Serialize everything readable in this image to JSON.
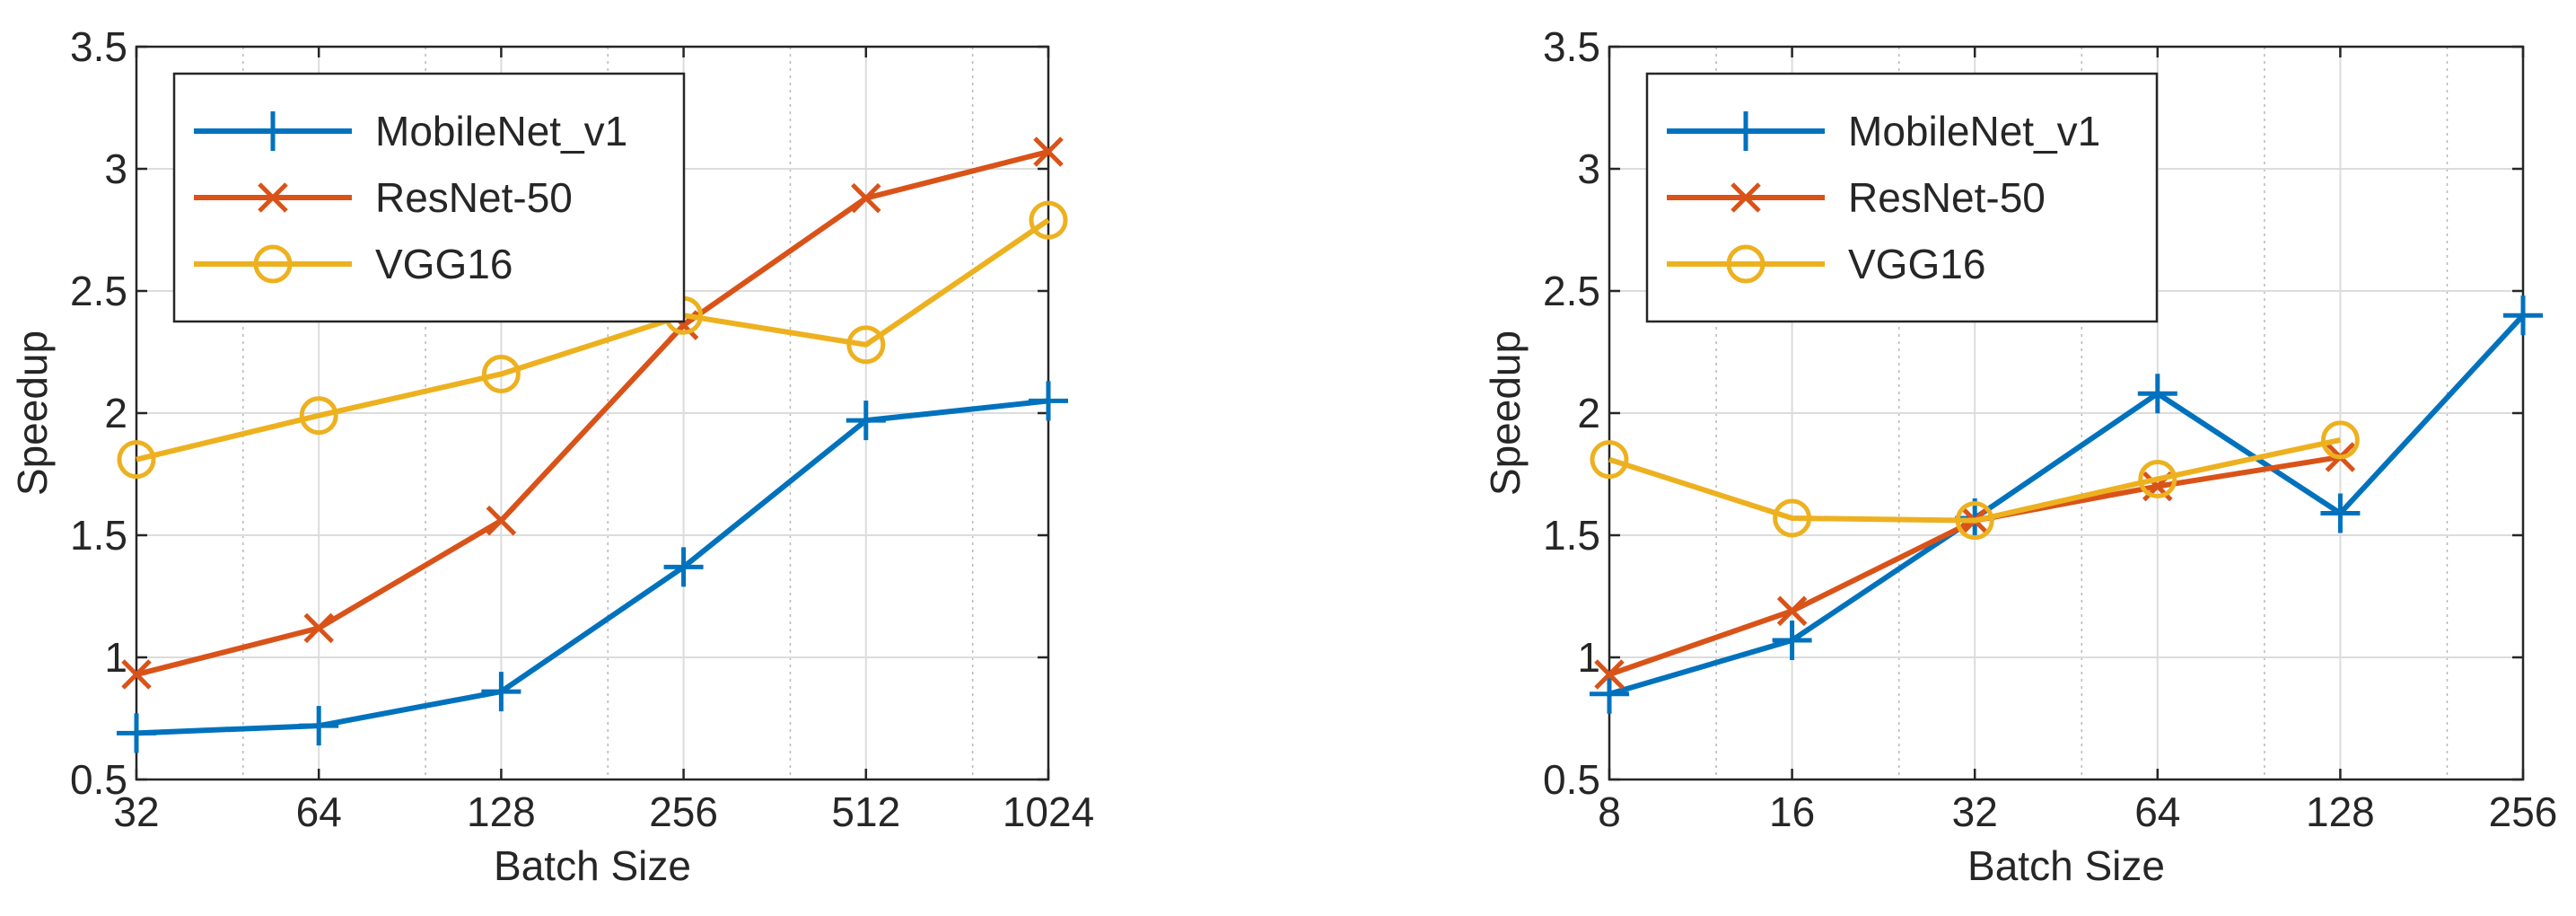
{
  "chart_data": [
    {
      "type": "line",
      "xscale": "log2",
      "xlabel": "Batch Size",
      "ylabel": "Speedup",
      "x": [
        32,
        64,
        128,
        256,
        512,
        1024
      ],
      "xticks": [
        "32",
        "64",
        "128",
        "256",
        "512",
        "1024"
      ],
      "xlim": [
        32,
        1024
      ],
      "yticks": [
        "0.5",
        "1",
        "1.5",
        "2",
        "2.5",
        "3",
        "3.5"
      ],
      "ylim": [
        0.5,
        3.5
      ],
      "grid": true,
      "legend_position": "top-left",
      "series": [
        {
          "name": "MobileNet_v1",
          "color": "#0072BD",
          "marker": "plus",
          "values": [
            0.69,
            0.72,
            0.86,
            1.37,
            1.97,
            2.05
          ]
        },
        {
          "name": "ResNet-50",
          "color": "#D95319",
          "marker": "x",
          "values": [
            0.93,
            1.12,
            1.56,
            2.36,
            2.88,
            3.07
          ]
        },
        {
          "name": "VGG16",
          "color": "#EDB120",
          "marker": "circle",
          "values": [
            1.81,
            1.99,
            2.16,
            2.4,
            2.28,
            2.79
          ]
        }
      ]
    },
    {
      "type": "line",
      "xscale": "log2",
      "xlabel": "Batch Size",
      "ylabel": "Speedup",
      "x": [
        8,
        16,
        32,
        64,
        128,
        256
      ],
      "xticks": [
        "8",
        "16",
        "32",
        "64",
        "128",
        "256"
      ],
      "xlim": [
        8,
        256
      ],
      "yticks": [
        "0.5",
        "1",
        "1.5",
        "2",
        "2.5",
        "3",
        "3.5"
      ],
      "ylim": [
        0.5,
        3.5
      ],
      "grid": true,
      "legend_position": "top-left",
      "series": [
        {
          "name": "MobileNet_v1",
          "color": "#0072BD",
          "marker": "plus",
          "values": [
            0.85,
            1.07,
            1.57,
            2.08,
            1.59,
            2.4
          ]
        },
        {
          "name": "ResNet-50",
          "color": "#D95319",
          "marker": "x",
          "values": [
            0.93,
            1.19,
            1.56,
            1.7,
            1.82,
            null
          ]
        },
        {
          "name": "VGG16",
          "color": "#EDB120",
          "marker": "circle",
          "values": [
            1.81,
            1.57,
            1.56,
            1.73,
            1.89,
            null
          ]
        }
      ]
    }
  ]
}
